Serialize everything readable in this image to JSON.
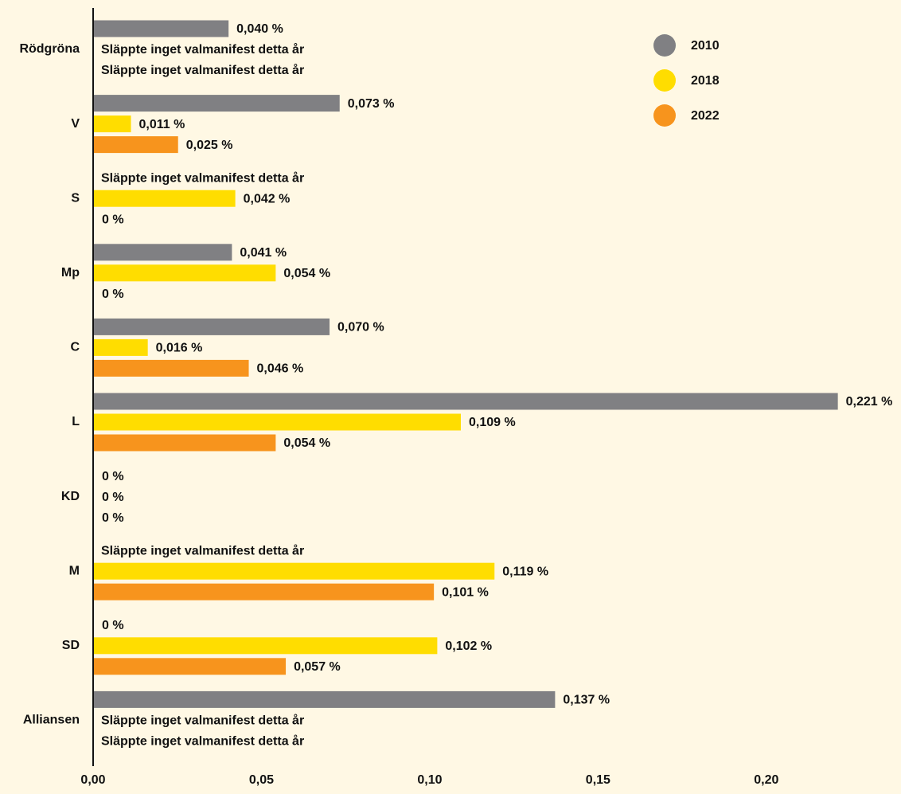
{
  "chart_data": {
    "type": "barh",
    "categories": [
      "Rödgröna",
      "V",
      "S",
      "Mp",
      "C",
      "L",
      "KD",
      "M",
      "SD",
      "Alliansen"
    ],
    "series": [
      {
        "name": "2010",
        "color": "#808083",
        "values": [
          0.04,
          0.073,
          null,
          0.041,
          0.07,
          0.221,
          0,
          null,
          0,
          0.137
        ],
        "value_labels": [
          "0,040 %",
          "0,073 %",
          "Släppte inget valmanifest detta år",
          "0,041 %",
          "0,070 %",
          "0,221 %",
          "0 %",
          "Släppte inget valmanifest detta år",
          "0 %",
          "0,137 %"
        ]
      },
      {
        "name": "2018",
        "color": "#ffdd00",
        "values": [
          null,
          0.011,
          0.042,
          0.054,
          0.016,
          0.109,
          0,
          0.119,
          0.102,
          null
        ],
        "value_labels": [
          "Släppte inget valmanifest detta år",
          "0,011 %",
          "0,042 %",
          "0,054 %",
          "0,016 %",
          "0,109 %",
          "0 %",
          "0,119 %",
          "0,102 %",
          "Släppte inget valmanifest detta år"
        ]
      },
      {
        "name": "2022",
        "color": "#f7941d",
        "values": [
          null,
          0.025,
          0,
          0,
          0.046,
          0.054,
          0,
          0.101,
          0.057,
          null
        ],
        "value_labels": [
          "Släppte inget valmanifest detta år",
          "0,025 %",
          "0 %",
          "0 %",
          "0,046 %",
          "0,054 %",
          "0 %",
          "0,101 %",
          "0,057 %",
          "Släppte inget valmanifest detta år"
        ]
      }
    ],
    "xlim": [
      0,
      0.24
    ],
    "xticks": [
      {
        "value": 0,
        "label": "0,00"
      },
      {
        "value": 0.05,
        "label": "0,05"
      },
      {
        "value": 0.1,
        "label": "0,10"
      },
      {
        "value": 0.15,
        "label": "0,15"
      },
      {
        "value": 0.2,
        "label": "0,20"
      }
    ],
    "legend": "upper right"
  }
}
